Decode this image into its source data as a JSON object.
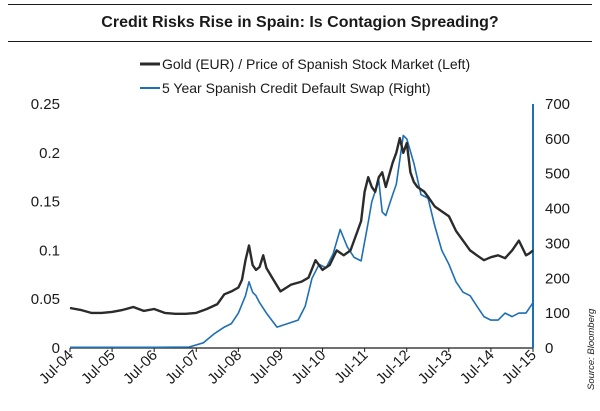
{
  "chart_data": {
    "type": "line",
    "title": "Credit Risks Rise in Spain: Is Contagion Spreading?",
    "source": "Source: Bloomberg",
    "x_ticks": [
      "Jul-04",
      "Jul-05",
      "Jul-06",
      "Jul-07",
      "Jul-08",
      "Jul-09",
      "Jul-10",
      "Jul-11",
      "Jul-12",
      "Jul-13",
      "Jul-14",
      "Jul-15"
    ],
    "y_left": {
      "lim": [
        0,
        0.25
      ],
      "ticks": [
        "0",
        "0.05",
        "0.1",
        "0.15",
        "0.2",
        "0.25"
      ]
    },
    "y_right": {
      "lim": [
        0,
        700
      ],
      "ticks": [
        "0",
        "100",
        "200",
        "300",
        "400",
        "500",
        "600",
        "700"
      ]
    },
    "grid": false,
    "legend_position": "top-center",
    "series": [
      {
        "name": "Gold (EUR) / Price of Spanish Stock Market (Left)",
        "axis": "left",
        "color": "#2b2b2b",
        "x": [
          "2004-07",
          "2004-10",
          "2005-01",
          "2005-04",
          "2005-07",
          "2005-10",
          "2006-01",
          "2006-04",
          "2006-07",
          "2006-10",
          "2007-01",
          "2007-04",
          "2007-07",
          "2007-10",
          "2008-01",
          "2008-03",
          "2008-05",
          "2008-07",
          "2008-08",
          "2008-09",
          "2008-10",
          "2008-11",
          "2008-12",
          "2009-01",
          "2009-02",
          "2009-03",
          "2009-05",
          "2009-07",
          "2009-10",
          "2010-01",
          "2010-03",
          "2010-05",
          "2010-07",
          "2010-09",
          "2010-11",
          "2011-01",
          "2011-03",
          "2011-05",
          "2011-06",
          "2011-07",
          "2011-08",
          "2011-09",
          "2011-10",
          "2011-11",
          "2011-12",
          "2012-01",
          "2012-03",
          "2012-04",
          "2012-05",
          "2012-06",
          "2012-07",
          "2012-08",
          "2012-09",
          "2012-10",
          "2012-12",
          "2013-01",
          "2013-03",
          "2013-05",
          "2013-07",
          "2013-09",
          "2013-11",
          "2014-01",
          "2014-03",
          "2014-05",
          "2014-07",
          "2014-09",
          "2014-11",
          "2015-01",
          "2015-03",
          "2015-05",
          "2015-06",
          "2015-07"
        ],
        "values": [
          0.041,
          0.039,
          0.036,
          0.036,
          0.037,
          0.039,
          0.042,
          0.038,
          0.04,
          0.036,
          0.035,
          0.035,
          0.036,
          0.04,
          0.045,
          0.055,
          0.058,
          0.062,
          0.07,
          0.09,
          0.105,
          0.085,
          0.08,
          0.083,
          0.095,
          0.082,
          0.07,
          0.058,
          0.065,
          0.068,
          0.072,
          0.09,
          0.08,
          0.085,
          0.1,
          0.095,
          0.1,
          0.12,
          0.13,
          0.16,
          0.175,
          0.165,
          0.16,
          0.175,
          0.18,
          0.165,
          0.19,
          0.2,
          0.215,
          0.2,
          0.21,
          0.18,
          0.17,
          0.165,
          0.16,
          0.155,
          0.145,
          0.14,
          0.135,
          0.12,
          0.11,
          0.1,
          0.095,
          0.09,
          0.093,
          0.095,
          0.092,
          0.1,
          0.11,
          0.095,
          0.097,
          0.1
        ]
      },
      {
        "name": "5 Year Spanish Credit Default Swap (Right)",
        "axis": "right",
        "color": "#1f6fb5",
        "x": [
          "2004-07",
          "2005-07",
          "2006-07",
          "2007-05",
          "2007-09",
          "2007-12",
          "2008-03",
          "2008-05",
          "2008-07",
          "2008-09",
          "2008-10",
          "2008-11",
          "2008-12",
          "2009-01",
          "2009-03",
          "2009-06",
          "2009-09",
          "2009-12",
          "2010-02",
          "2010-04",
          "2010-06",
          "2010-08",
          "2010-10",
          "2010-12",
          "2011-02",
          "2011-04",
          "2011-06",
          "2011-08",
          "2011-09",
          "2011-11",
          "2011-12",
          "2012-01",
          "2012-03",
          "2012-04",
          "2012-06",
          "2012-07",
          "2012-09",
          "2012-11",
          "2013-01",
          "2013-03",
          "2013-05",
          "2013-07",
          "2013-09",
          "2013-11",
          "2014-01",
          "2014-03",
          "2014-05",
          "2014-07",
          "2014-09",
          "2014-11",
          "2015-01",
          "2015-03",
          "2015-05",
          "2015-07"
        ],
        "values": [
          2,
          2,
          2,
          3,
          15,
          40,
          60,
          70,
          100,
          150,
          190,
          160,
          150,
          130,
          100,
          60,
          70,
          80,
          120,
          200,
          240,
          230,
          270,
          340,
          290,
          260,
          250,
          360,
          420,
          480,
          390,
          380,
          440,
          470,
          610,
          600,
          530,
          440,
          430,
          350,
          280,
          240,
          190,
          160,
          150,
          120,
          90,
          80,
          80,
          100,
          90,
          100,
          100,
          130
        ]
      }
    ]
  }
}
